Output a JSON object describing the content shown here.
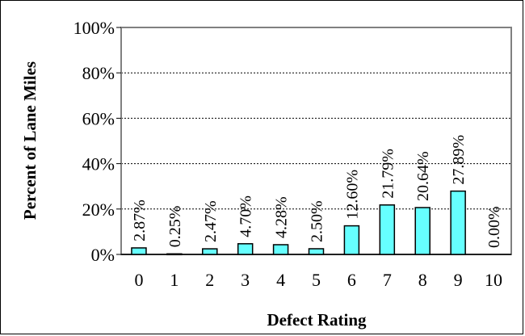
{
  "chart_data": {
    "type": "bar",
    "title": "",
    "xlabel": "Defect Rating",
    "ylabel": "Percent of Lane Miles",
    "categories": [
      "0",
      "1",
      "2",
      "3",
      "4",
      "5",
      "6",
      "7",
      "8",
      "9",
      "10"
    ],
    "values": [
      2.87,
      0.25,
      2.47,
      4.7,
      4.28,
      2.5,
      12.6,
      21.79,
      20.64,
      27.89,
      0.0
    ],
    "data_labels": [
      "2.87%",
      "0.25%",
      "2.47%",
      "4.70%",
      "4.28%",
      "2.50%",
      "12.60%",
      "21.79%",
      "20.64%",
      "27.89%",
      "0.00%"
    ],
    "yticks": [
      "0%",
      "20%",
      "40%",
      "60%",
      "80%",
      "100%"
    ],
    "ylim": [
      0,
      100
    ],
    "grid": true,
    "legend": "none",
    "colors": {
      "bar_fill": "#66ffff",
      "bar_stroke": "#000000",
      "gridline": "#000000"
    }
  }
}
